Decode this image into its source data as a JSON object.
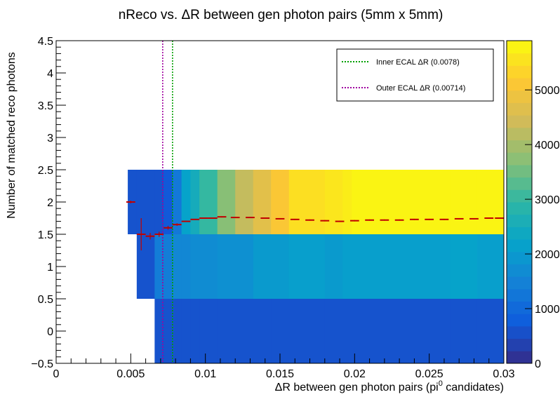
{
  "chart_data": {
    "type": "heatmap",
    "title": "nReco vs. ΔR between gen photon pairs (5mm x 5mm)",
    "xlabel": {
      "main": "ΔR between gen photon pairs (pi",
      "sup": "0",
      "tail": " candidates)"
    },
    "ylabel": "Number of matched reco photons",
    "xlim": [
      0,
      0.03
    ],
    "ylim": [
      -0.5,
      4.5
    ],
    "x_ticks": [
      "0",
      "0.005",
      "0.01",
      "0.015",
      "0.02",
      "0.025",
      "0.03"
    ],
    "x_tick_values": [
      0,
      0.005,
      0.01,
      0.015,
      0.02,
      0.025,
      0.03
    ],
    "y_ticks": [
      "−0.5",
      "0",
      "0.5",
      "1",
      "1.5",
      "2",
      "2.5",
      "3",
      "3.5",
      "4",
      "4.5"
    ],
    "y_tick_values": [
      -0.5,
      0,
      0.5,
      1,
      1.5,
      2,
      2.5,
      3,
      3.5,
      4,
      4.5
    ],
    "z_range": [
      0,
      5900
    ],
    "z_ticks": [
      "0",
      "1000",
      "2000",
      "3000",
      "4000",
      "5000"
    ],
    "z_tick_values": [
      0,
      1000,
      2000,
      3000,
      4000,
      5000
    ],
    "grid": false,
    "x_bins": [
      0.0048,
      0.0054,
      0.0066,
      0.0072,
      0.0078,
      0.0084,
      0.009,
      0.0096,
      0.0108,
      0.012,
      0.0132,
      0.0144,
      0.0156,
      0.018,
      0.0192,
      0.0198,
      0.0264,
      0.0282,
      0.03
    ],
    "cells": [
      {
        "row": 2,
        "counts": [
          600,
          600,
          600,
          700,
          1300,
          2200,
          2500,
          3000,
          3700,
          4300,
          4700,
          5100,
          5500,
          5600,
          5700,
          5800,
          5800,
          5800
        ]
      },
      {
        "row": 1,
        "counts": [
          null,
          600,
          1400,
          1400,
          1600,
          1600,
          1700,
          1700,
          1800,
          1800,
          2000,
          2000,
          2100,
          2000,
          2100,
          2100,
          2200,
          2100
        ]
      },
      {
        "row": 0,
        "counts": [
          null,
          null,
          600,
          600,
          600,
          600,
          600,
          600,
          600,
          600,
          600,
          600,
          600,
          600,
          600,
          600,
          600,
          600
        ]
      }
    ],
    "profile": {
      "x": [
        0.005,
        0.0057,
        0.0063,
        0.0069,
        0.0075,
        0.0081,
        0.0087,
        0.0093,
        0.0099,
        0.0105,
        0.0111,
        0.012,
        0.013,
        0.014,
        0.015,
        0.016,
        0.017,
        0.018,
        0.019,
        0.02,
        0.021,
        0.022,
        0.023,
        0.024,
        0.025,
        0.026,
        0.027,
        0.028,
        0.029,
        0.0297
      ],
      "y": [
        2.0,
        1.5,
        1.47,
        1.5,
        1.6,
        1.65,
        1.7,
        1.73,
        1.75,
        1.75,
        1.77,
        1.76,
        1.76,
        1.75,
        1.74,
        1.73,
        1.72,
        1.71,
        1.7,
        1.71,
        1.72,
        1.72,
        1.72,
        1.73,
        1.73,
        1.73,
        1.74,
        1.74,
        1.75,
        1.75
      ],
      "err": [
        0.02,
        0.25,
        0.05,
        0.04,
        0.03,
        0.02,
        0.01,
        0.01,
        0.01,
        0.01,
        0.01,
        0.01,
        0.01,
        0.01,
        0.01,
        0.01,
        0.01,
        0.01,
        0.01,
        0.01,
        0.01,
        0.01,
        0.01,
        0.01,
        0.01,
        0.01,
        0.01,
        0.01,
        0.01,
        0.01
      ],
      "color": "#c00000"
    },
    "vlines": [
      {
        "x": 0.0078,
        "color": "#00a000",
        "label": "Inner ECAL ΔR (0.0078)"
      },
      {
        "x": 0.00714,
        "color": "#a000a0",
        "label": "Outer ECAL ΔR (0.00714)"
      }
    ],
    "legend_position": "top-right",
    "palette": [
      "#352a87",
      "#0f5cdd",
      "#1481d6",
      "#06a4ca",
      "#2eb7a4",
      "#87bf77",
      "#d1bb59",
      "#fec832",
      "#f9fb0e"
    ]
  }
}
